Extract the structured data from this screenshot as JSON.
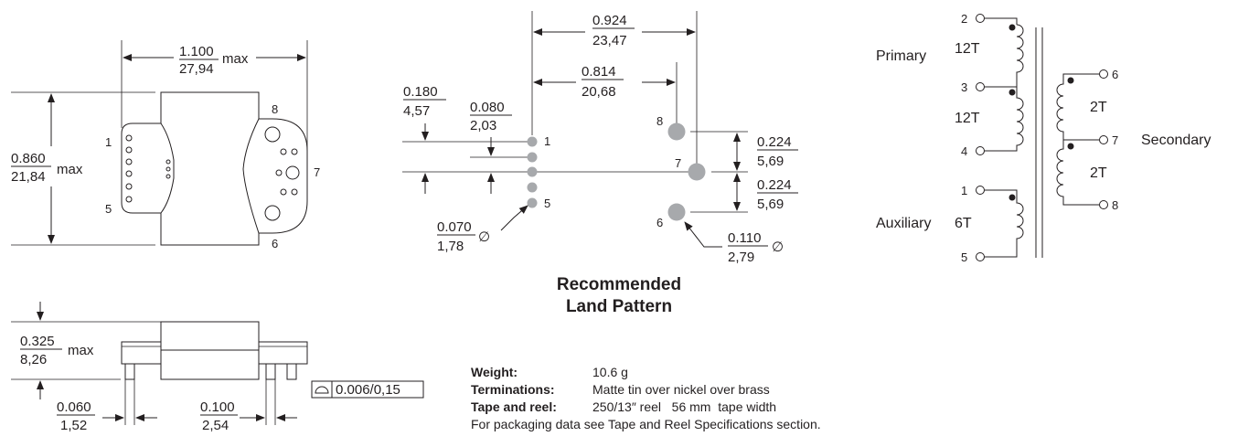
{
  "top_view": {
    "width_in": "1.100",
    "width_mm": "27,94",
    "width_suffix": "max",
    "height_in": "0.860",
    "height_mm": "21,84",
    "height_suffix": "max",
    "pins": [
      "1",
      "5",
      "8",
      "7",
      "6"
    ]
  },
  "side_view": {
    "height_in": "0.325",
    "height_mm": "8,26",
    "height_suffix": "max",
    "pin_width_in": "0.060",
    "pin_width_mm": "1,52",
    "pitch_in": "0.100",
    "pitch_mm": "2,54",
    "flatness": "0.006/0,15"
  },
  "land_pattern": {
    "title_line1": "Recommended",
    "title_line2": "Land Pattern",
    "total_in": "0.924",
    "total_mm": "23,47",
    "inner_in": "0.814",
    "inner_mm": "20,68",
    "left_in": "0.180",
    "left_mm": "4,57",
    "pitch_in": "0.080",
    "pitch_mm": "2,03",
    "right1_in": "0.224",
    "right1_mm": "5,69",
    "right2_in": "0.224",
    "right2_mm": "5,69",
    "small_pad_in": "0.070",
    "small_pad_mm": "1,78",
    "large_pad_in": "0.110",
    "large_pad_mm": "2,79",
    "diameter_symbol": "∅",
    "pins": [
      "8",
      "1",
      "7",
      "5",
      "6"
    ]
  },
  "schematic": {
    "primary": "Primary",
    "secondary": "Secondary",
    "auxiliary": "Auxiliary",
    "turns_p1": "12T",
    "turns_p2": "12T",
    "turns_s1": "2T",
    "turns_s2": "2T",
    "turns_aux": "6T",
    "pins": [
      "2",
      "3",
      "4",
      "1",
      "5",
      "6",
      "7",
      "8"
    ]
  },
  "specs": {
    "weight_label": "Weight:",
    "weight_value": "10.6 g",
    "terminations_label": "Terminations:",
    "terminations_value": "Matte tin over nickel over brass",
    "tape_label": "Tape and reel:",
    "tape_value": "250/13″ reel   56 mm  tape width",
    "note": "For packaging data see Tape and Reel Specifications section."
  }
}
